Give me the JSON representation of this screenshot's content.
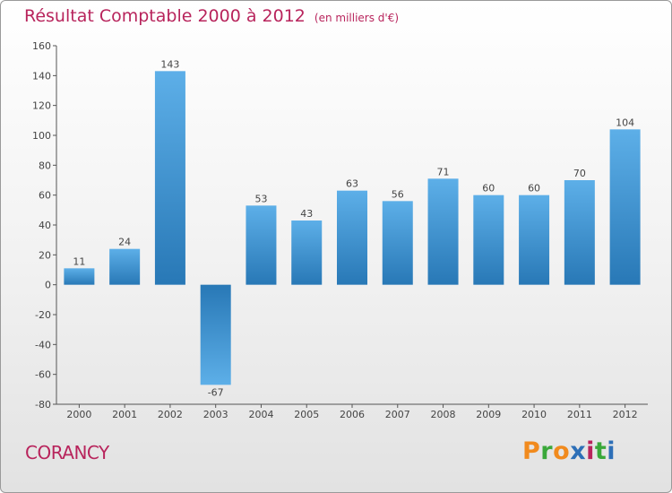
{
  "header": {
    "title": "Résultat Comptable 2000 à 2012",
    "subtitle": "(en milliers d'€)"
  },
  "footer": {
    "commune": "CORANCY",
    "logo": {
      "letters": [
        "P",
        "r",
        "o",
        "x",
        "i",
        "t",
        "i"
      ],
      "colors": [
        "#f18a1d",
        "#3aa83a",
        "#f18a1d",
        "#2d6fb7",
        "#b8245c",
        "#3aa83a",
        "#2d6fb7"
      ]
    }
  },
  "colors": {
    "bar_dark": "#2878b6",
    "bar_light": "#5dafe8",
    "title": "#b8245c"
  },
  "chart_data": {
    "type": "bar",
    "title": "Résultat Comptable 2000 à 2012",
    "categories": [
      "2000",
      "2001",
      "2002",
      "2003",
      "2004",
      "2005",
      "2006",
      "2007",
      "2008",
      "2009",
      "2010",
      "2011",
      "2012"
    ],
    "values": [
      11,
      24,
      143,
      -67,
      53,
      43,
      63,
      56,
      71,
      60,
      60,
      70,
      104
    ],
    "ylim": [
      -80,
      160
    ],
    "yticks": [
      -80,
      -60,
      -40,
      -20,
      0,
      20,
      40,
      60,
      80,
      100,
      120,
      140,
      160
    ],
    "grid": false,
    "legend": "none"
  }
}
